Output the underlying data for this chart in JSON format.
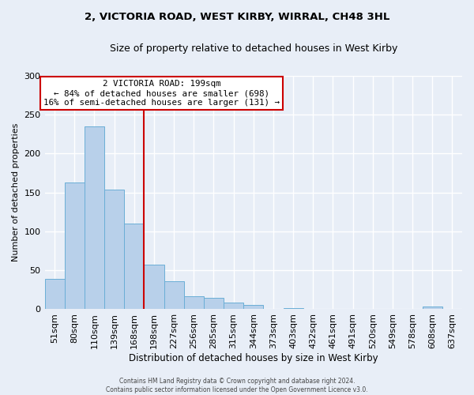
{
  "title": "2, VICTORIA ROAD, WEST KIRBY, WIRRAL, CH48 3HL",
  "subtitle": "Size of property relative to detached houses in West Kirby",
  "xlabel": "Distribution of detached houses by size in West Kirby",
  "ylabel": "Number of detached properties",
  "bin_labels": [
    "51sqm",
    "80sqm",
    "110sqm",
    "139sqm",
    "168sqm",
    "198sqm",
    "227sqm",
    "256sqm",
    "285sqm",
    "315sqm",
    "344sqm",
    "373sqm",
    "403sqm",
    "432sqm",
    "461sqm",
    "491sqm",
    "520sqm",
    "549sqm",
    "578sqm",
    "608sqm",
    "637sqm"
  ],
  "bar_values": [
    39,
    163,
    235,
    154,
    110,
    57,
    36,
    17,
    15,
    9,
    6,
    0,
    1,
    0,
    0,
    0,
    0,
    0,
    0,
    3,
    0
  ],
  "bar_color": "#b8d0ea",
  "bar_edge_color": "#6aaed6",
  "vline_color": "#cc0000",
  "box_text_line1": "2 VICTORIA ROAD: 199sqm",
  "box_text_line2": "← 84% of detached houses are smaller (698)",
  "box_text_line3": "16% of semi-detached houses are larger (131) →",
  "box_color": "#cc0000",
  "box_fill": "white",
  "ylim": [
    0,
    300
  ],
  "yticks": [
    0,
    50,
    100,
    150,
    200,
    250,
    300
  ],
  "footer_line1": "Contains HM Land Registry data © Crown copyright and database right 2024.",
  "footer_line2": "Contains public sector information licensed under the Open Government Licence v3.0.",
  "bg_color": "#e8eef7"
}
